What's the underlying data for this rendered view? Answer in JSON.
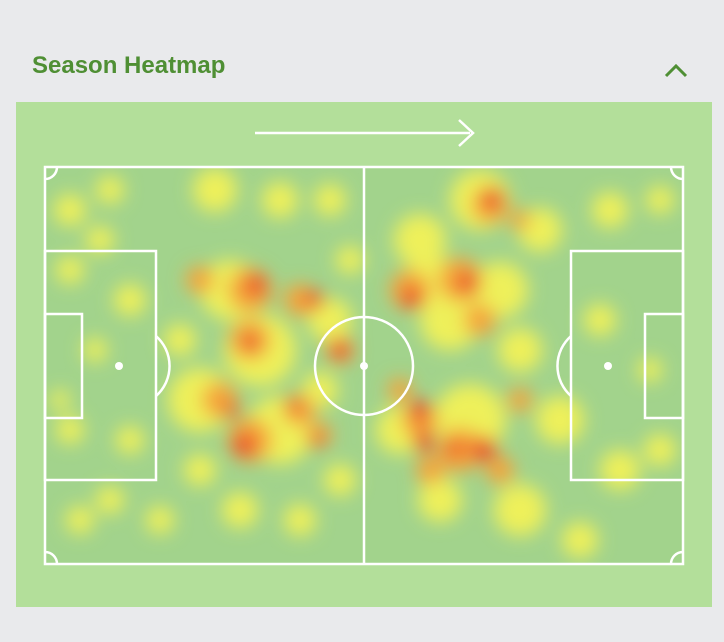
{
  "header": {
    "title": "Season Heatmap"
  }
}
